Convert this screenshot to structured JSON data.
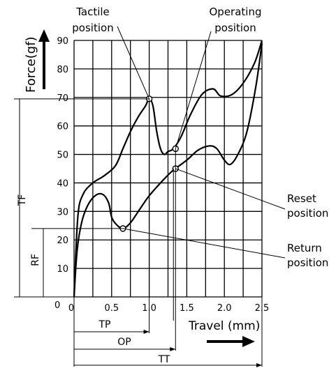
{
  "chart_data": {
    "type": "line",
    "ylabel": "Force(gf)",
    "xlabel": "Travel (mm)",
    "xlim": [
      0,
      2.5
    ],
    "ylim": [
      0,
      90
    ],
    "x_ticks": [
      {
        "v": 0,
        "label": "0"
      },
      {
        "v": 0.5,
        "label": "0.5"
      },
      {
        "v": 1.0,
        "label": "1.0"
      },
      {
        "v": 1.5,
        "label": "1.5"
      },
      {
        "v": 2.0,
        "label": "2.0"
      },
      {
        "v": 2.5,
        "label": "2.5"
      }
    ],
    "y_ticks": [
      {
        "v": 0,
        "label": "0"
      },
      {
        "v": 10,
        "label": "10"
      },
      {
        "v": 20,
        "label": "20"
      },
      {
        "v": 30,
        "label": "30"
      },
      {
        "v": 40,
        "label": "40"
      },
      {
        "v": 50,
        "label": "50"
      },
      {
        "v": 60,
        "label": "60"
      },
      {
        "v": 70,
        "label": "70"
      },
      {
        "v": 80,
        "label": "80"
      },
      {
        "v": 90,
        "label": "90"
      }
    ],
    "grid": true,
    "series": [
      {
        "id": "press-curve",
        "points": [
          [
            0,
            0
          ],
          [
            0.05,
            28
          ],
          [
            0.12,
            36
          ],
          [
            0.25,
            40
          ],
          [
            0.4,
            42.5
          ],
          [
            0.55,
            46
          ],
          [
            0.65,
            52
          ],
          [
            0.75,
            58
          ],
          [
            0.85,
            63
          ],
          [
            0.95,
            67
          ],
          [
            1.0,
            69.5
          ],
          [
            1.05,
            67
          ],
          [
            1.1,
            58
          ],
          [
            1.15,
            52
          ],
          [
            1.2,
            50
          ],
          [
            1.25,
            51
          ],
          [
            1.32,
            52
          ],
          [
            1.42,
            56
          ],
          [
            1.55,
            64
          ],
          [
            1.7,
            71
          ],
          [
            1.85,
            73
          ],
          [
            1.95,
            70.5
          ],
          [
            2.1,
            71
          ],
          [
            2.25,
            75
          ],
          [
            2.4,
            82
          ],
          [
            2.5,
            90
          ]
        ]
      },
      {
        "id": "release-curve",
        "points": [
          [
            0,
            0
          ],
          [
            0.04,
            16
          ],
          [
            0.1,
            26
          ],
          [
            0.18,
            32
          ],
          [
            0.28,
            35.5
          ],
          [
            0.38,
            36
          ],
          [
            0.46,
            33
          ],
          [
            0.5,
            28
          ],
          [
            0.56,
            25.5
          ],
          [
            0.65,
            24
          ],
          [
            0.75,
            26
          ],
          [
            0.88,
            31
          ],
          [
            1.0,
            35.5
          ],
          [
            1.15,
            40
          ],
          [
            1.3,
            44
          ],
          [
            1.5,
            48
          ],
          [
            1.65,
            51.5
          ],
          [
            1.8,
            53
          ],
          [
            1.9,
            52
          ],
          [
            2.0,
            48
          ],
          [
            2.08,
            46.5
          ],
          [
            2.18,
            50
          ],
          [
            2.3,
            58
          ],
          [
            2.42,
            74
          ],
          [
            2.5,
            89
          ]
        ]
      }
    ],
    "markers": [
      {
        "id": "tactile-point",
        "x": 1.0,
        "y": 69.5
      },
      {
        "id": "operating-point",
        "x": 1.35,
        "y": 52
      },
      {
        "id": "reset-point",
        "x": 1.35,
        "y": 45
      },
      {
        "id": "return-point",
        "x": 0.65,
        "y": 24
      }
    ],
    "annotations": {
      "tactile": "Tactile\nposition",
      "operating": "Operating\nposition",
      "reset": "Reset\nposition",
      "return": "Return\nposition"
    },
    "dimensions": {
      "tf": "TF",
      "rf": "RF",
      "tp": "TP",
      "op": "OP",
      "tt": "TT"
    }
  }
}
